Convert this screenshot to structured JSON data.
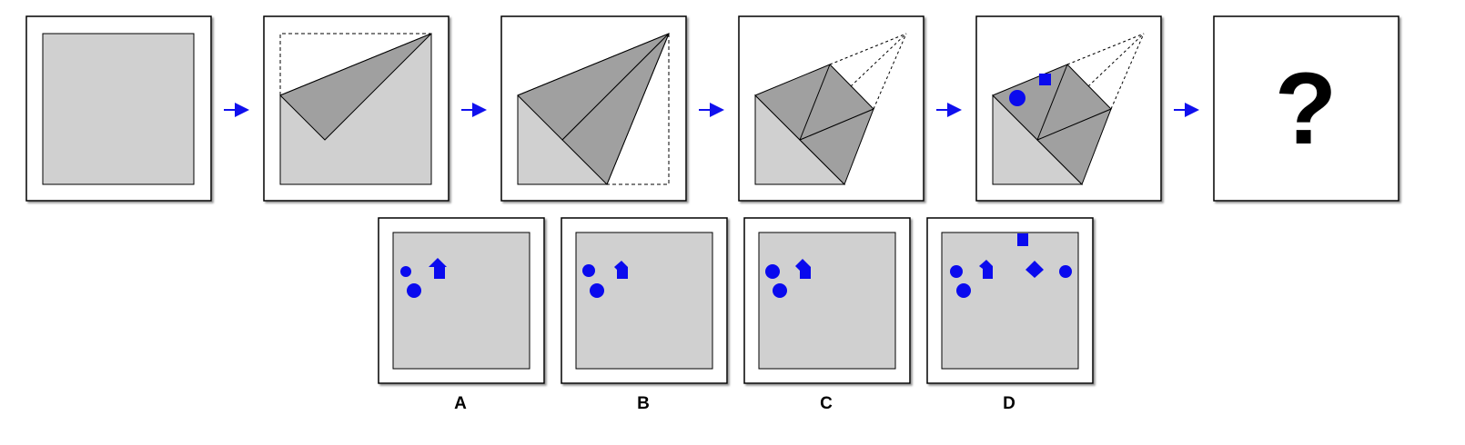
{
  "colors": {
    "paper": "#d0d0d0",
    "fold": "#a0a0a0",
    "outline": "#000000",
    "arrow": "#1010ee",
    "punch": "#0a0aee",
    "frame": "#ffffff"
  },
  "question_mark": "?",
  "options": [
    {
      "label": "A"
    },
    {
      "label": "B"
    },
    {
      "label": "C"
    },
    {
      "label": "D"
    }
  ]
}
